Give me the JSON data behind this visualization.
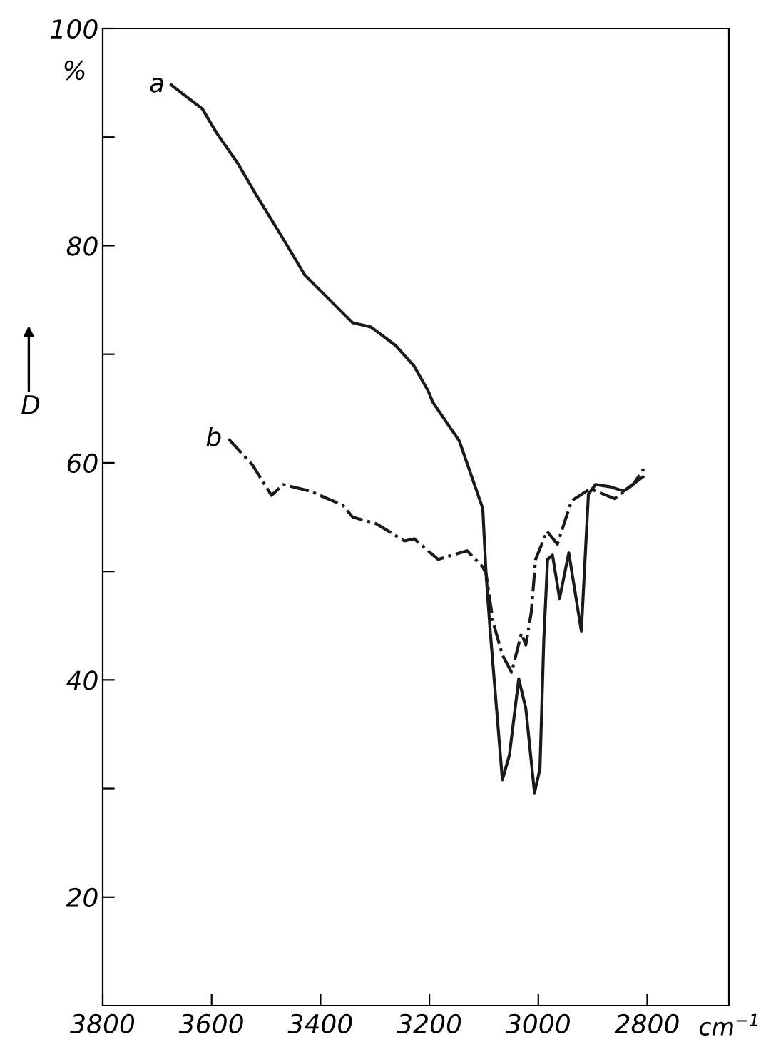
{
  "chart_data": {
    "type": "line",
    "xlabel": "cm$^{−1}$",
    "ylabel": "D",
    "annotations": [
      "%"
    ],
    "xlim": [
      3800,
      2650
    ],
    "xticks": [
      3800,
      3600,
      3400,
      3200,
      3000,
      2800
    ],
    "ylim": [
      10,
      100
    ],
    "yticks": [
      {
        "value": 20,
        "label": "20"
      },
      {
        "value": 30,
        "label": null
      },
      {
        "value": 40,
        "label": "40"
      },
      {
        "value": 50,
        "label": null
      },
      {
        "value": 60,
        "label": "60"
      },
      {
        "value": 70,
        "label": null
      },
      {
        "value": 80,
        "label": "80"
      },
      {
        "value": 90,
        "label": null
      },
      {
        "value": 100,
        "label": "100"
      }
    ],
    "grid": false,
    "legend": false,
    "marker": "none",
    "series": [
      {
        "name": "a",
        "color": "#1a1a1a",
        "line_style": "solid",
        "x": [
          3674,
          3617,
          3591,
          3551,
          3516,
          3473,
          3429,
          3377,
          3341,
          3307,
          3262,
          3228,
          3202,
          3194,
          3145,
          3102,
          3096,
          3089,
          3066,
          3053,
          3036,
          3023,
          3007,
          2997,
          2990,
          2983,
          2974,
          2961,
          2944,
          2921,
          2908,
          2895,
          2869,
          2843,
          2808
        ],
        "values": [
          94.8,
          92.6,
          90.4,
          87.5,
          84.5,
          81.0,
          77.3,
          74.7,
          72.9,
          72.5,
          70.8,
          68.9,
          66.6,
          65.6,
          62.0,
          55.8,
          49.8,
          44.9,
          30.8,
          33.1,
          40.1,
          37.4,
          29.6,
          31.8,
          43.6,
          51.1,
          51.5,
          47.5,
          51.7,
          44.5,
          57.1,
          58.0,
          57.8,
          57.4,
          58.7
        ]
      },
      {
        "name": "b",
        "color": "#1a1a1a",
        "line_style": "dashdot",
        "x": [
          3569,
          3525,
          3490,
          3469,
          3420,
          3359,
          3341,
          3298,
          3246,
          3228,
          3184,
          3131,
          3102,
          3096,
          3083,
          3066,
          3049,
          3031,
          3023,
          3013,
          3005,
          2984,
          2965,
          2939,
          2905,
          2860,
          2826,
          2803
        ],
        "values": [
          62.2,
          59.8,
          57.0,
          58.0,
          57.4,
          56.1,
          55.0,
          54.4,
          52.8,
          53.0,
          51.1,
          51.9,
          50.4,
          49.8,
          45.3,
          42.3,
          40.7,
          44.3,
          43.2,
          46.2,
          51.1,
          53.7,
          52.5,
          56.5,
          57.6,
          56.7,
          58.0,
          59.7
        ]
      }
    ]
  }
}
